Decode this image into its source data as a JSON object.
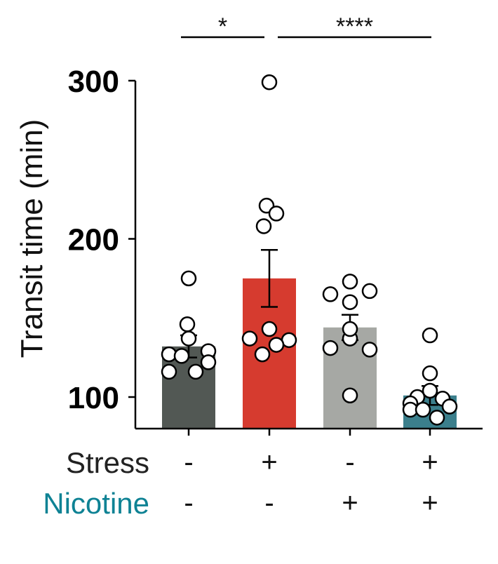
{
  "chart_data": {
    "type": "bar",
    "ylabel": "Transit time (min)",
    "ylim": [
      80,
      300
    ],
    "yticks": [
      100,
      200,
      300
    ],
    "categories": [
      "Stress -, Nicotine -",
      "Stress +, Nicotine -",
      "Stress -, Nicotine +",
      "Stress +, Nicotine +"
    ],
    "bars": [
      {
        "value": 132,
        "sem": 7,
        "color": "#525854",
        "points": [
          175,
          146,
          137,
          129,
          127,
          122,
          116,
          116,
          126
        ]
      },
      {
        "value": 175,
        "sem": 18,
        "color": "#d63b2f",
        "points": [
          299,
          221,
          216,
          208,
          143,
          137,
          136,
          133,
          127
        ]
      },
      {
        "value": 144,
        "sem": 8,
        "color": "#a6a8a4",
        "points": [
          173,
          167,
          165,
          160,
          137,
          131,
          130,
          101,
          143
        ]
      },
      {
        "value": 101,
        "sem": 6,
        "color": "#3b7f8c",
        "points": [
          139,
          115,
          104,
          100,
          99,
          96,
          94,
          92,
          92,
          87
        ]
      }
    ],
    "row_labels": [
      {
        "text": "Stress",
        "color": "#222222",
        "signs": [
          "-",
          "+",
          "-",
          "+"
        ]
      },
      {
        "text": "Nicotine",
        "color": "#0e8294",
        "signs": [
          "-",
          "-",
          "+",
          "+"
        ]
      }
    ],
    "significance": [
      {
        "from": 0,
        "to": 1,
        "label": "*"
      },
      {
        "from": 1,
        "to": 3,
        "label": "****"
      }
    ]
  }
}
